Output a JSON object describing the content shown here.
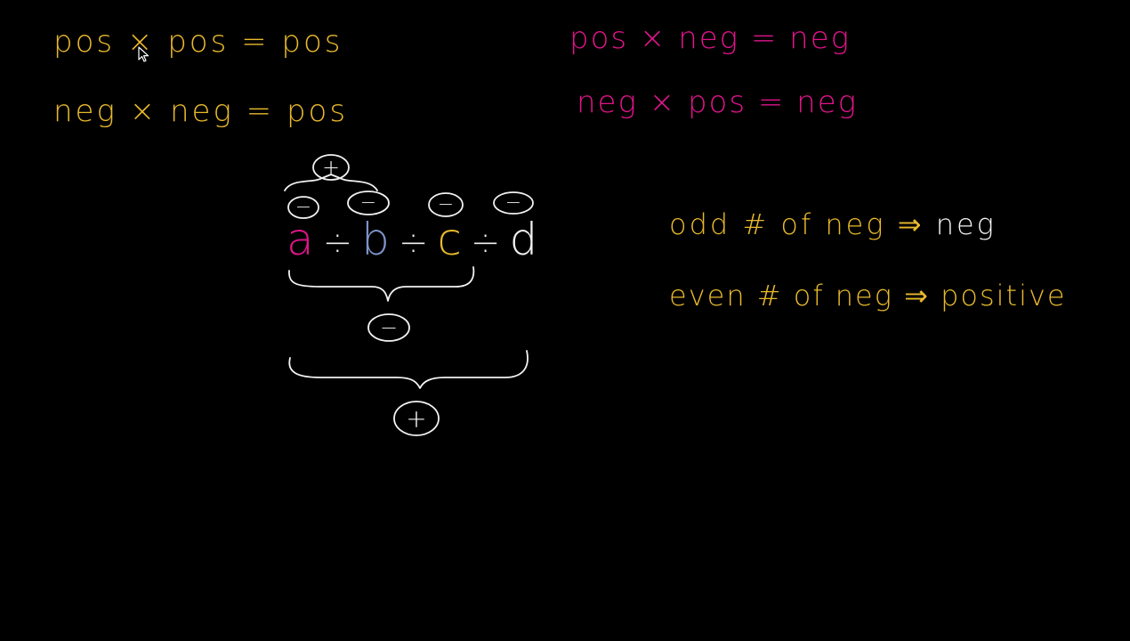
{
  "rules": {
    "pos_pos": "pos × pos = pos",
    "neg_neg": "neg × neg = pos",
    "pos_neg": "pos × neg = neg",
    "neg_pos": "neg × pos = neg",
    "odd_prefix": "odd # of neg ⇒ ",
    "odd_result": "neg",
    "even": "even # of neg ⇒ positive"
  },
  "expression": {
    "a": "a",
    "b": "b",
    "c": "c",
    "d": "d",
    "div": "÷"
  },
  "signs": {
    "top": "+",
    "a": "−",
    "b": "−",
    "c": "−",
    "d": "−",
    "group_abc": "−",
    "group_all": "+"
  },
  "colors": {
    "yellow": "#e9b92c",
    "pink": "#e0148a",
    "white": "#f2f2f2",
    "blue": "#7d93c9",
    "background": "#000000"
  },
  "icons": {
    "cursor": "arrow-cursor-icon"
  }
}
